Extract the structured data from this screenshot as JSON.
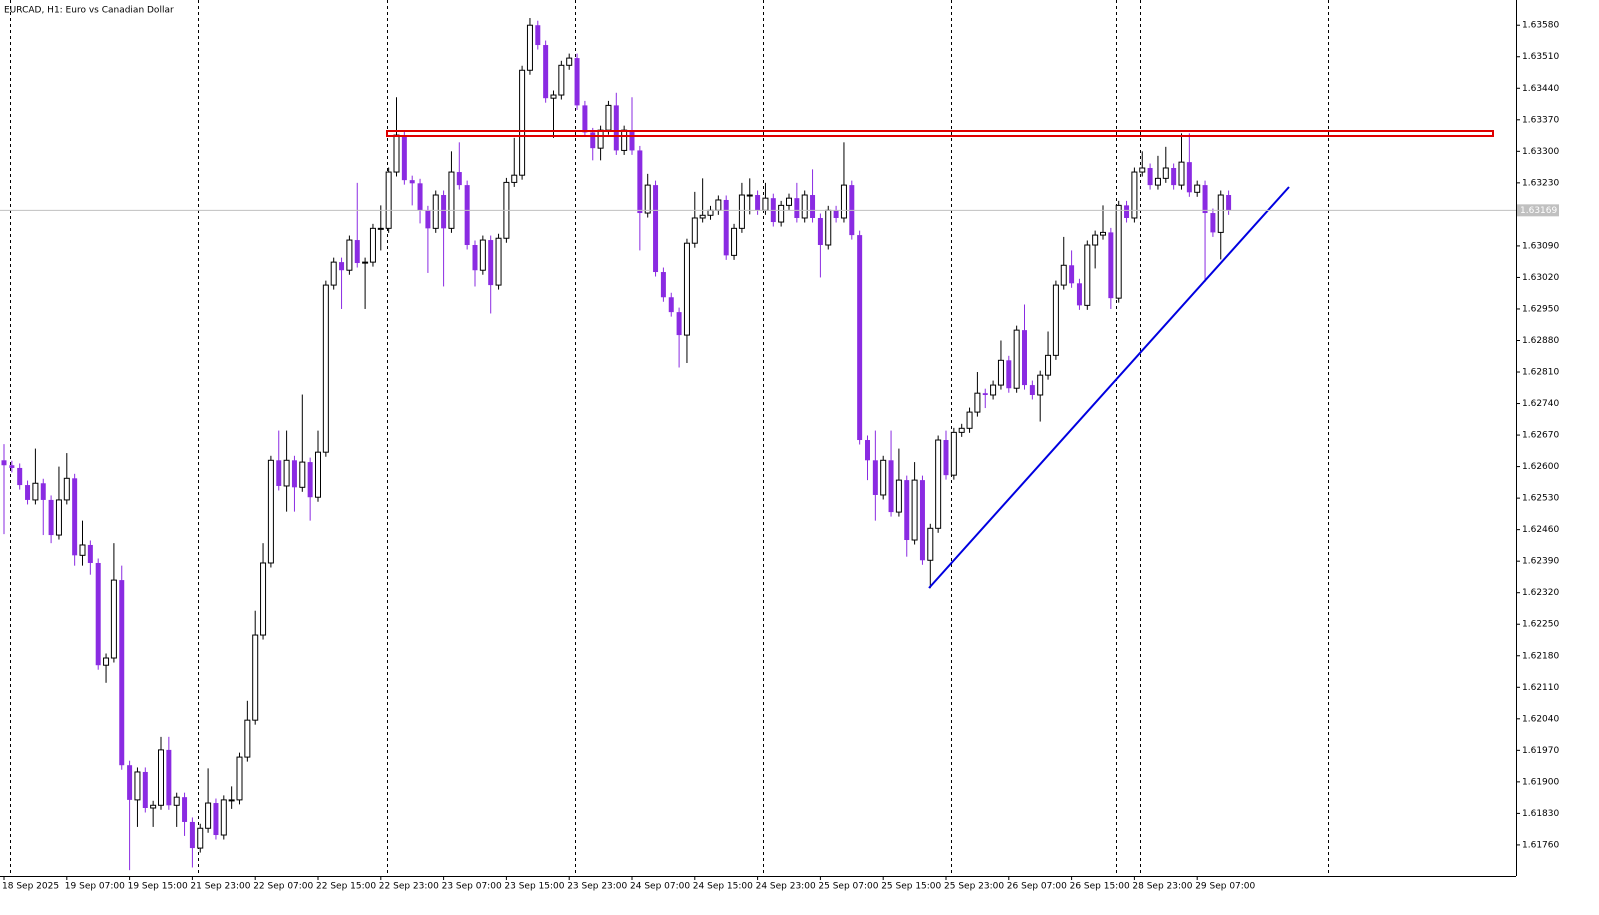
{
  "chart_data": {
    "type": "candlestick",
    "title": "EURCAD, H1:  Euro vs Canadian Dollar",
    "categories": [
      "18 Sep 2025",
      null,
      null,
      null,
      null,
      null,
      null,
      null,
      "19 Sep 07:00",
      null,
      null,
      null,
      null,
      null,
      null,
      null,
      "19 Sep 15:00",
      null,
      null,
      null,
      null,
      null,
      null,
      null,
      "21 Sep 23:00",
      null,
      null,
      null,
      null,
      null,
      null,
      null,
      "22 Sep 07:00",
      null,
      null,
      null,
      null,
      null,
      null,
      null,
      "22 Sep 15:00",
      null,
      null,
      null,
      null,
      null,
      null,
      null,
      "22 Sep 23:00",
      null,
      null,
      null,
      null,
      null,
      null,
      null,
      "23 Sep 07:00",
      null,
      null,
      null,
      null,
      null,
      null,
      null,
      "23 Sep 15:00",
      null,
      null,
      null,
      null,
      null,
      null,
      null,
      "23 Sep 23:00",
      null,
      null,
      null,
      null,
      null,
      null,
      null,
      "24 Sep 07:00",
      null,
      null,
      null,
      null,
      null,
      null,
      null,
      "24 Sep 15:00",
      null,
      null,
      null,
      null,
      null,
      null,
      null,
      "24 Sep 23:00",
      null,
      null,
      null,
      null,
      null,
      null,
      null,
      "25 Sep 07:00",
      null,
      null,
      null,
      null,
      null,
      null,
      null,
      "25 Sep 15:00",
      null,
      null,
      null,
      null,
      null,
      null,
      null,
      "25 Sep 23:00",
      null,
      null,
      null,
      null,
      null,
      null,
      null,
      "26 Sep 07:00",
      null,
      null,
      null,
      null,
      null,
      null,
      null,
      "26 Sep 15:00",
      null,
      null,
      null,
      null,
      null,
      null,
      null,
      "28 Sep 23:00",
      null,
      null,
      null,
      null,
      null,
      null,
      null,
      "29 Sep 07:00",
      null,
      null,
      null,
      null
    ],
    "open": [
      1.62614,
      1.62603,
      1.62597,
      1.62559,
      1.62526,
      1.62563,
      1.62526,
      1.62448,
      1.62526,
      1.62574,
      1.62403,
      1.62426,
      1.62386,
      1.62159,
      1.62175,
      1.62348,
      1.61937,
      1.6186,
      1.61922,
      1.61842,
      1.61848,
      1.61971,
      1.61848,
      1.61866,
      1.61811,
      1.61753,
      1.61797,
      1.61853,
      1.61782,
      1.6186,
      1.6186,
      1.61955,
      1.62037,
      1.62226,
      1.62386,
      1.62614,
      1.62557,
      1.62614,
      1.62554,
      1.6261,
      1.62532,
      1.62632,
      1.63003,
      1.63054,
      1.63036,
      1.63103,
      1.63052,
      1.63054,
      1.63129,
      1.63129,
      1.63254,
      1.63336,
      1.63236,
      1.63229,
      1.63169,
      1.63129,
      1.63203,
      1.63129,
      1.63254,
      1.63225,
      1.63092,
      1.63036,
      1.63103,
      1.63003,
      1.63107,
      1.63231,
      1.63247,
      1.6348,
      1.6358,
      1.63536,
      1.63418,
      1.63425,
      1.63491,
      1.63507,
      1.63402,
      1.63342,
      1.63307,
      1.63347,
      1.63402,
      1.63302,
      1.63347,
      1.63302,
      1.63163,
      1.63225,
      1.63032,
      1.62976,
      1.62943,
      1.62892,
      1.63096,
      1.63152,
      1.63158,
      1.63169,
      1.63192,
      1.63069,
      1.63129,
      1.63203,
      1.63203,
      1.63169,
      1.63196,
      1.63143,
      1.6318,
      1.63196,
      1.63152,
      1.63203,
      1.63152,
      1.63092,
      1.63169,
      1.63152,
      1.63225,
      1.63114,
      1.62659,
      1.62614,
      1.62537,
      1.62614,
      1.62499,
      1.6257,
      1.62437,
      1.6257,
      1.62392,
      1.62463,
      1.62659,
      1.62581,
      1.62676,
      1.62685,
      1.62721,
      1.62763,
      1.62759,
      1.62781,
      1.62836,
      1.62774,
      1.62903,
      1.62781,
      1.62759,
      1.62803,
      1.62847,
      1.63003,
      1.63047,
      1.63007,
      1.62958,
      1.63092,
      1.63114,
      1.6312,
      1.62974,
      1.6318,
      1.63152,
      1.63254,
      1.63263,
      1.63225,
      1.6324,
      1.63263,
      1.63225,
      1.63276,
      1.63209,
      1.63225,
      1.63163,
      1.6312,
      1.63203
    ],
    "high": [
      1.6265,
      1.62613,
      1.62607,
      1.62569,
      1.6264,
      1.62573,
      1.62536,
      1.626,
      1.6263,
      1.62584,
      1.6248,
      1.62436,
      1.62396,
      1.62185,
      1.6243,
      1.6238,
      1.61947,
      1.61932,
      1.61932,
      1.61858,
      1.62,
      1.62,
      1.61876,
      1.61876,
      1.61821,
      1.61807,
      1.6193,
      1.61863,
      1.6187,
      1.6189,
      1.61965,
      1.6208,
      1.6228,
      1.6243,
      1.62624,
      1.6268,
      1.6268,
      1.62624,
      1.6276,
      1.6262,
      1.6268,
      1.63013,
      1.63064,
      1.63064,
      1.63113,
      1.6323,
      1.63064,
      1.63139,
      1.6318,
      1.63264,
      1.6342,
      1.63346,
      1.63246,
      1.63239,
      1.63179,
      1.63213,
      1.63213,
      1.633,
      1.6332,
      1.63235,
      1.63102,
      1.63113,
      1.63113,
      1.63117,
      1.63241,
      1.6333,
      1.6349,
      1.63596,
      1.6359,
      1.63546,
      1.63435,
      1.63501,
      1.63517,
      1.63517,
      1.63412,
      1.63352,
      1.63357,
      1.63412,
      1.6343,
      1.63357,
      1.6342,
      1.63312,
      1.6325,
      1.63235,
      1.63042,
      1.62986,
      1.62953,
      1.63106,
      1.6321,
      1.6324,
      1.63179,
      1.63202,
      1.63202,
      1.63139,
      1.6323,
      1.6324,
      1.63213,
      1.6323,
      1.63206,
      1.6319,
      1.63206,
      1.6323,
      1.63213,
      1.6326,
      1.63162,
      1.63179,
      1.63179,
      1.6332,
      1.63235,
      1.63124,
      1.62669,
      1.6268,
      1.62624,
      1.6268,
      1.6264,
      1.6258,
      1.6261,
      1.6258,
      1.62473,
      1.62669,
      1.6268,
      1.62686,
      1.62695,
      1.62731,
      1.6281,
      1.62773,
      1.62791,
      1.6288,
      1.62846,
      1.62913,
      1.6296,
      1.62791,
      1.62813,
      1.629,
      1.63013,
      1.6311,
      1.6308,
      1.63017,
      1.63102,
      1.63124,
      1.6318,
      1.6313,
      1.6319,
      1.6319,
      1.63264,
      1.633,
      1.63273,
      1.6329,
      1.6331,
      1.63273,
      1.6334,
      1.6334,
      1.63235,
      1.63235,
      1.63173,
      1.63213,
      1.63213
    ],
    "low": [
      1.6245,
      1.62587,
      1.62549,
      1.62516,
      1.62516,
      1.62448,
      1.6243,
      1.62438,
      1.62516,
      1.6238,
      1.6238,
      1.6236,
      1.62149,
      1.6212,
      1.62165,
      1.61927,
      1.61704,
      1.618,
      1.61832,
      1.618,
      1.61838,
      1.61838,
      1.618,
      1.6178,
      1.6171,
      1.61743,
      1.61787,
      1.61772,
      1.61772,
      1.6184,
      1.6185,
      1.61945,
      1.62027,
      1.62216,
      1.62376,
      1.62547,
      1.625,
      1.625,
      1.62544,
      1.6248,
      1.62522,
      1.62622,
      1.62993,
      1.6295,
      1.63026,
      1.63042,
      1.6295,
      1.63044,
      1.6308,
      1.63119,
      1.63244,
      1.63226,
      1.6318,
      1.6314,
      1.6303,
      1.63119,
      1.63,
      1.63119,
      1.63215,
      1.63082,
      1.63,
      1.63026,
      1.6294,
      1.62993,
      1.63097,
      1.63221,
      1.63237,
      1.6347,
      1.63526,
      1.63408,
      1.6333,
      1.63415,
      1.63481,
      1.63392,
      1.63332,
      1.6328,
      1.6328,
      1.63337,
      1.63292,
      1.63292,
      1.63292,
      1.6308,
      1.63153,
      1.63022,
      1.62966,
      1.62933,
      1.6282,
      1.6283,
      1.63086,
      1.63142,
      1.63148,
      1.63159,
      1.63059,
      1.63059,
      1.63119,
      1.6316,
      1.63159,
      1.63159,
      1.63133,
      1.63133,
      1.6317,
      1.63142,
      1.63142,
      1.63142,
      1.6302,
      1.63082,
      1.63142,
      1.63142,
      1.63104,
      1.62649,
      1.6257,
      1.6248,
      1.62527,
      1.62489,
      1.62489,
      1.624,
      1.62427,
      1.62382,
      1.6233,
      1.62453,
      1.62571,
      1.62571,
      1.62666,
      1.62675,
      1.62711,
      1.6273,
      1.62749,
      1.62771,
      1.62764,
      1.62764,
      1.62771,
      1.62749,
      1.627,
      1.62793,
      1.62837,
      1.62993,
      1.62997,
      1.62948,
      1.62948,
      1.6304,
      1.63104,
      1.6295,
      1.62964,
      1.63142,
      1.63142,
      1.63244,
      1.63215,
      1.63215,
      1.6323,
      1.63215,
      1.63215,
      1.63199,
      1.63199,
      1.6301,
      1.6311,
      1.6306,
      1.63159
    ],
    "close": [
      1.62603,
      1.62597,
      1.62559,
      1.62526,
      1.62563,
      1.62526,
      1.62448,
      1.62526,
      1.62574,
      1.62403,
      1.62426,
      1.62386,
      1.62159,
      1.62175,
      1.62348,
      1.61937,
      1.6186,
      1.61922,
      1.61842,
      1.61848,
      1.61971,
      1.61848,
      1.61866,
      1.61811,
      1.61753,
      1.61797,
      1.61853,
      1.61782,
      1.6186,
      1.6186,
      1.61955,
      1.62037,
      1.62226,
      1.62386,
      1.62614,
      1.62557,
      1.62614,
      1.62554,
      1.6261,
      1.62532,
      1.62632,
      1.63003,
      1.63054,
      1.63036,
      1.63103,
      1.63052,
      1.63054,
      1.63129,
      1.63129,
      1.63254,
      1.63336,
      1.63236,
      1.63229,
      1.63169,
      1.63129,
      1.63203,
      1.63129,
      1.63254,
      1.63225,
      1.63092,
      1.63036,
      1.63103,
      1.63003,
      1.63107,
      1.63231,
      1.63247,
      1.6348,
      1.6358,
      1.63536,
      1.63418,
      1.63425,
      1.63491,
      1.63507,
      1.63402,
      1.63342,
      1.63307,
      1.63347,
      1.63402,
      1.63302,
      1.63347,
      1.63302,
      1.63163,
      1.63225,
      1.63032,
      1.62976,
      1.62943,
      1.62892,
      1.63096,
      1.63152,
      1.63158,
      1.63169,
      1.63192,
      1.63069,
      1.63129,
      1.63203,
      1.63203,
      1.63169,
      1.63196,
      1.63143,
      1.6318,
      1.63196,
      1.63152,
      1.63203,
      1.63152,
      1.63092,
      1.63169,
      1.63152,
      1.63225,
      1.63114,
      1.62659,
      1.62614,
      1.62537,
      1.62614,
      1.62499,
      1.6257,
      1.62437,
      1.6257,
      1.62392,
      1.62463,
      1.62659,
      1.62581,
      1.62676,
      1.62685,
      1.62721,
      1.62763,
      1.62759,
      1.62781,
      1.62836,
      1.62774,
      1.62903,
      1.62781,
      1.62759,
      1.62803,
      1.62847,
      1.63003,
      1.63047,
      1.63007,
      1.62958,
      1.63092,
      1.63114,
      1.6312,
      1.62974,
      1.6318,
      1.63152,
      1.63254,
      1.63263,
      1.63225,
      1.6324,
      1.63263,
      1.63225,
      1.63276,
      1.63209,
      1.63225,
      1.63163,
      1.6312,
      1.63203,
      1.63169
    ],
    "up_color": "#ffffff",
    "down_color": "#8a2be2",
    "outline_color": "#000000",
    "last_price": 1.63169,
    "ylim": [
      1.61691,
      1.63636
    ],
    "yticks": [
      {
        "value": 1.6358,
        "label": "1.63580"
      },
      {
        "value": 1.6351,
        "label": "1.63510"
      },
      {
        "value": 1.6344,
        "label": "1.63440"
      },
      {
        "value": 1.6337,
        "label": "1.63370"
      },
      {
        "value": 1.633,
        "label": "1.63300"
      },
      {
        "value": 1.6323,
        "label": "1.63230"
      },
      {
        "value": 1.6309,
        "label": "1.63090"
      },
      {
        "value": 1.6302,
        "label": "1.63020"
      },
      {
        "value": 1.6295,
        "label": "1.62950"
      },
      {
        "value": 1.6288,
        "label": "1.62880"
      },
      {
        "value": 1.6281,
        "label": "1.62810"
      },
      {
        "value": 1.6274,
        "label": "1.62740"
      },
      {
        "value": 1.6267,
        "label": "1.62670"
      },
      {
        "value": 1.626,
        "label": "1.62600"
      },
      {
        "value": 1.6253,
        "label": "1.62530"
      },
      {
        "value": 1.6246,
        "label": "1.62460"
      },
      {
        "value": 1.6239,
        "label": "1.62390"
      },
      {
        "value": 1.6232,
        "label": "1.62320"
      },
      {
        "value": 1.6225,
        "label": "1.62250"
      },
      {
        "value": 1.6218,
        "label": "1.62180"
      },
      {
        "value": 1.6211,
        "label": "1.62110"
      },
      {
        "value": 1.6204,
        "label": "1.62040"
      },
      {
        "value": 1.6197,
        "label": "1.61970"
      },
      {
        "value": 1.619,
        "label": "1.61900"
      },
      {
        "value": 1.6183,
        "label": "1.61830"
      },
      {
        "value": 1.6176,
        "label": "1.61760"
      }
    ],
    "grid": false
  }
}
